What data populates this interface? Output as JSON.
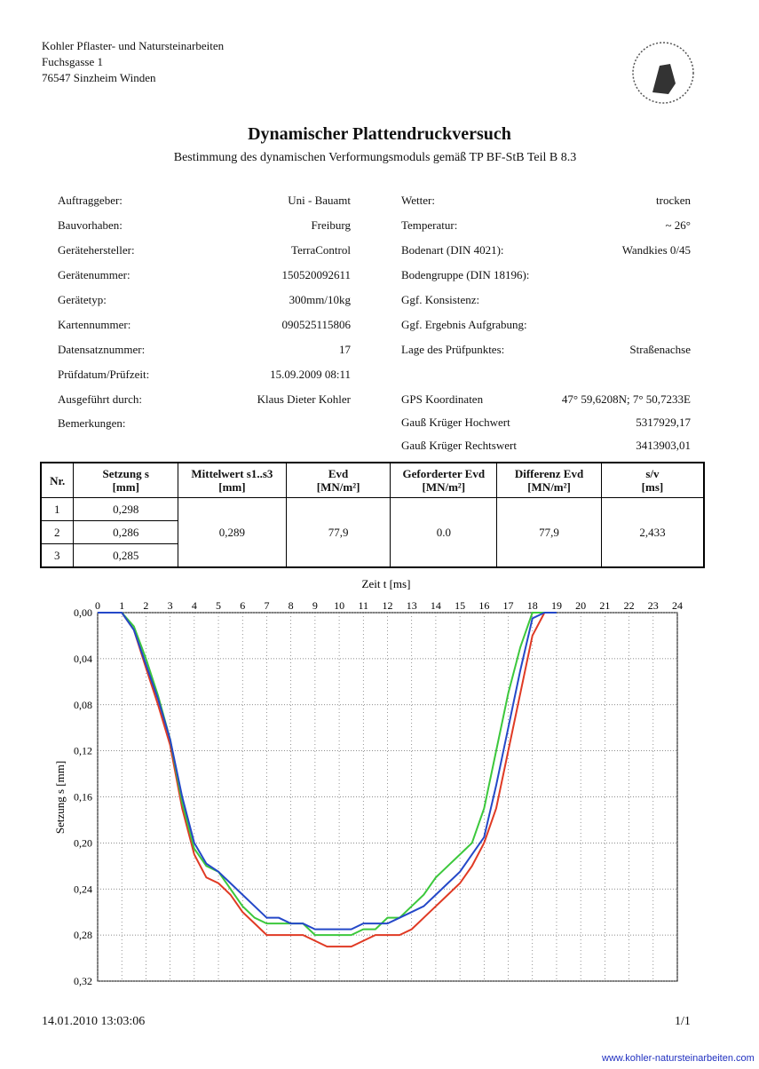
{
  "header": {
    "company": "Kohler Pflaster- und Natursteinarbeiten",
    "street": "Fuchsgasse 1",
    "city": "76547 Sinzheim Winden"
  },
  "title": "Dynamischer Plattendruckversuch",
  "subtitle": "Bestimmung des dynamischen Verformungsmoduls gemäß TP BF-StB Teil B 8.3",
  "left_fields": [
    {
      "label": "Auftraggeber:",
      "value": "Uni - Bauamt"
    },
    {
      "label": "Bauvorhaben:",
      "value": "Freiburg"
    },
    {
      "label": "Gerätehersteller:",
      "value": "TerraControl"
    },
    {
      "label": "Gerätenummer:",
      "value": "150520092611"
    },
    {
      "label": "Gerätetyp:",
      "value": "300mm/10kg"
    },
    {
      "label": "Kartennummer:",
      "value": "090525115806"
    },
    {
      "label": "Datensatznummer:",
      "value": "17"
    },
    {
      "label": "Prüfdatum/Prüfzeit:",
      "value": "15.09.2009 08:11"
    },
    {
      "label": "Ausgeführt durch:",
      "value": "Klaus Dieter Kohler"
    },
    {
      "label": "Bemerkungen:"
    }
  ],
  "right_fields": [
    {
      "label": "Wetter:",
      "value": "trocken"
    },
    {
      "label": "Temperatur:",
      "value": "~ 26°"
    },
    {
      "label": "Bodenart (DIN 4021):",
      "value": "Wandkies 0/45"
    },
    {
      "label": "Bodengruppe (DIN 18196):"
    },
    {
      "label": "Ggf. Konsistenz:"
    },
    {
      "label": "Ggf. Ergebnis Aufgrabung:"
    },
    {
      "label": "Lage des Prüfpunktes:",
      "value": "Straßenachse"
    },
    {
      "label": "GPS Koordinaten",
      "value": "47° 59,6208N; 7° 50,7233E"
    },
    {
      "label": "Gauß Krüger Hochwert",
      "value": "5317929,17"
    },
    {
      "label": "Gauß Krüger Rechtswert",
      "value": "3413903,01"
    }
  ],
  "table": {
    "headers": [
      {
        "name": "Nr."
      },
      {
        "name": "Setzung s",
        "unit": "[mm]"
      },
      {
        "name": "Mittelwert s1..s3",
        "unit": "[mm]"
      },
      {
        "name": "Evd",
        "unit": "[MN/m²]"
      },
      {
        "name": "Geforderter Evd",
        "unit": "[MN/m²]"
      },
      {
        "name": "Differenz Evd",
        "unit": "[MN/m²]"
      },
      {
        "name": "s/v",
        "unit": "[ms]"
      }
    ],
    "rows": [
      [
        "1",
        "0,298"
      ],
      [
        "2",
        "0,286"
      ],
      [
        "3",
        "0,285"
      ]
    ],
    "summary": [
      "0,289",
      "77,9",
      "0.0",
      "77,9",
      "2,433"
    ]
  },
  "chart": {
    "type": "line",
    "x_label": "Zeit t [ms]",
    "y_label": "Setzung s [mm]",
    "x": [
      0,
      0.5,
      1,
      1.5,
      2,
      2.5,
      3,
      3.5,
      4,
      4.5,
      5,
      5.5,
      6,
      6.5,
      7,
      7.5,
      8,
      8.5,
      9,
      9.5,
      10,
      10.5,
      11,
      11.5,
      12,
      12.5,
      13,
      13.5,
      14,
      14.5,
      15,
      15.5,
      16,
      16.5,
      17,
      17.5,
      18,
      18.5,
      19
    ],
    "xlim": [
      0,
      24
    ],
    "xticks": [
      0,
      1,
      2,
      3,
      4,
      5,
      6,
      7,
      8,
      9,
      10,
      11,
      12,
      13,
      14,
      15,
      16,
      17,
      18,
      19,
      20,
      21,
      22,
      23,
      24
    ],
    "ylim": [
      0,
      0.32
    ],
    "y_inverted": true,
    "yticks": [
      {
        "value": 0,
        "label": "0,00"
      },
      {
        "value": 0.04,
        "label": "0,04"
      },
      {
        "value": 0.08,
        "label": "0,08"
      },
      {
        "value": 0.12,
        "label": "0,12"
      },
      {
        "value": 0.16,
        "label": "0,16"
      },
      {
        "value": 0.2,
        "label": "0,20"
      },
      {
        "value": 0.24,
        "label": "0,24"
      },
      {
        "value": 0.28,
        "label": "0,28"
      },
      {
        "value": 0.32,
        "label": "0,32"
      }
    ],
    "grid": true,
    "series": [
      {
        "color": "#e03a24",
        "values": [
          0,
          0,
          0,
          0.015,
          0.048,
          0.08,
          0.115,
          0.17,
          0.21,
          0.23,
          0.235,
          0.245,
          0.26,
          0.27,
          0.28,
          0.28,
          0.28,
          0.28,
          0.285,
          0.29,
          0.29,
          0.29,
          0.285,
          0.28,
          0.28,
          0.28,
          0.275,
          0.265,
          0.255,
          0.245,
          0.235,
          0.22,
          0.2,
          0.17,
          0.12,
          0.07,
          0.02,
          0,
          0
        ]
      },
      {
        "color": "#3cc83c",
        "values": [
          0,
          0,
          0,
          0.012,
          0.04,
          0.072,
          0.11,
          0.165,
          0.205,
          0.22,
          0.225,
          0.24,
          0.255,
          0.265,
          0.27,
          0.27,
          0.27,
          0.27,
          0.28,
          0.28,
          0.28,
          0.28,
          0.275,
          0.275,
          0.265,
          0.265,
          0.255,
          0.245,
          0.23,
          0.22,
          0.21,
          0.2,
          0.17,
          0.12,
          0.07,
          0.03,
          0,
          0,
          0
        ]
      },
      {
        "color": "#2448c8",
        "values": [
          0,
          0,
          0,
          0.015,
          0.045,
          0.075,
          0.11,
          0.16,
          0.2,
          0.218,
          0.225,
          0.235,
          0.245,
          0.255,
          0.265,
          0.265,
          0.27,
          0.27,
          0.275,
          0.275,
          0.275,
          0.275,
          0.27,
          0.27,
          0.27,
          0.265,
          0.26,
          0.255,
          0.245,
          0.235,
          0.225,
          0.21,
          0.195,
          0.15,
          0.1,
          0.05,
          0.005,
          0,
          0
        ]
      }
    ]
  },
  "footer": {
    "timestamp": "14.01.2010 13:03:06",
    "page": "1/1",
    "url": "www.kohler-natursteinarbeiten.com"
  }
}
